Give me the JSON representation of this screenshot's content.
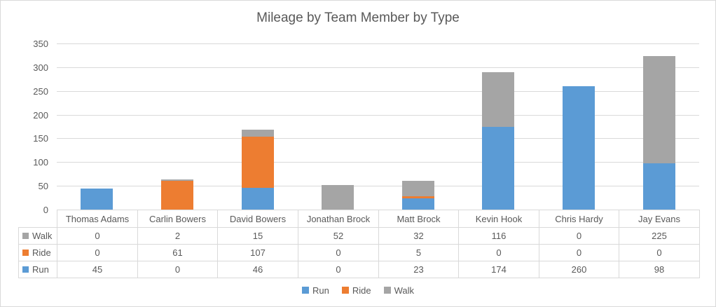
{
  "chart_data": {
    "type": "bar",
    "stacked": true,
    "title": "Mileage by Team Member by Type",
    "categories": [
      "Thomas Adams",
      "Carlin Bowers",
      "David Bowers",
      "Jonathan Brock",
      "Matt Brock",
      "Kevin Hook",
      "Chris Hardy",
      "Jay Evans"
    ],
    "series": [
      {
        "name": "Run",
        "color": "#5B9BD5",
        "values": [
          45,
          0,
          46,
          0,
          23,
          174,
          260,
          98
        ]
      },
      {
        "name": "Ride",
        "color": "#ED7D31",
        "values": [
          0,
          61,
          107,
          0,
          5,
          0,
          0,
          0
        ]
      },
      {
        "name": "Walk",
        "color": "#A5A5A5",
        "values": [
          0,
          2,
          15,
          52,
          32,
          116,
          0,
          225
        ]
      }
    ],
    "ylim": [
      0,
      350
    ],
    "yticks": [
      0,
      50,
      100,
      150,
      200,
      250,
      300,
      350
    ],
    "grid": true,
    "legend_position": "bottom",
    "legend_entries": [
      "Run",
      "Ride",
      "Walk"
    ],
    "data_table_row_order": [
      "Walk",
      "Ride",
      "Run"
    ],
    "style": {
      "text_color": "#595959",
      "gridline_color": "#D9D9D9",
      "table_border_color": "#D9D9D9",
      "background": "#FFFFFF"
    }
  }
}
